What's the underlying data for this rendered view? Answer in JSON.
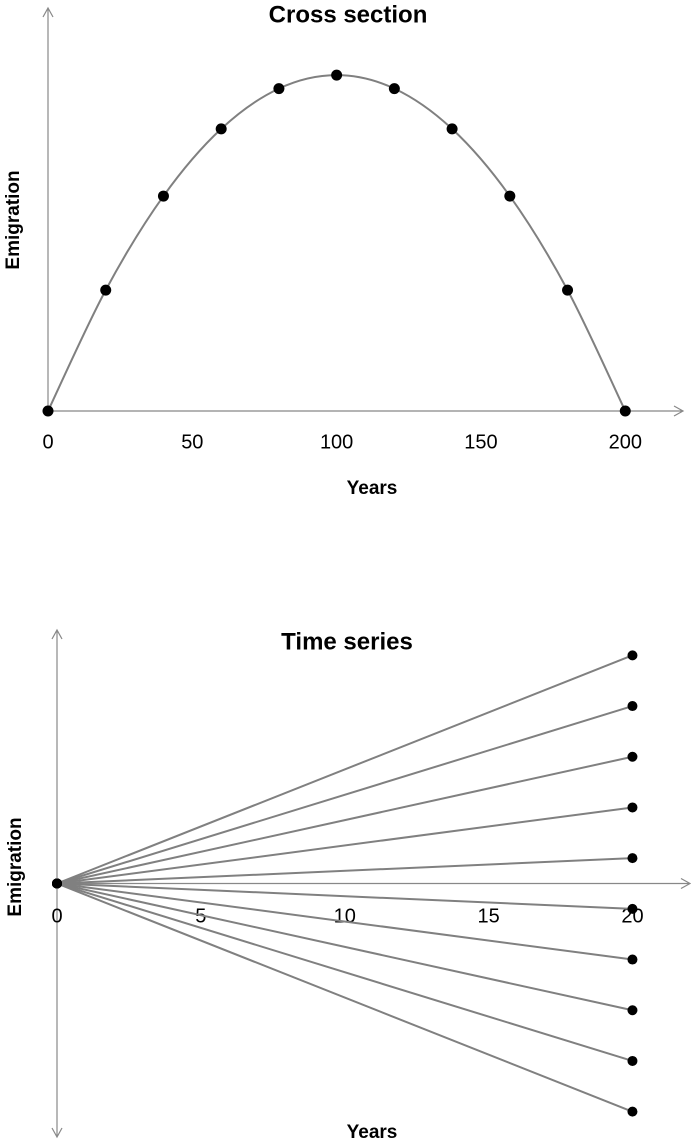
{
  "chart_data": [
    {
      "type": "line",
      "title": "Cross section",
      "xlabel": "Years",
      "ylabel": "Emigration",
      "x": [
        0,
        20,
        40,
        60,
        80,
        100,
        120,
        140,
        160,
        180,
        200
      ],
      "series": [
        {
          "color": "#808080",
          "values": [
            0,
            36,
            64,
            84,
            96,
            100,
            96,
            84,
            64,
            36,
            0
          ]
        }
      ],
      "smooth": true,
      "marker_color": "#000000",
      "xlim": [
        0,
        220
      ],
      "ylim": [
        0,
        120
      ],
      "xticks": [
        0,
        50,
        100,
        150,
        200
      ]
    },
    {
      "type": "line",
      "title": "Time series",
      "xlabel": "Years",
      "ylabel": "Emigration",
      "x": [
        0,
        20
      ],
      "series": [
        {
          "color": "#808080",
          "values": [
            0,
            4.5
          ]
        },
        {
          "color": "#808080",
          "values": [
            0,
            3.5
          ]
        },
        {
          "color": "#808080",
          "values": [
            0,
            2.5
          ]
        },
        {
          "color": "#808080",
          "values": [
            0,
            1.5
          ]
        },
        {
          "color": "#808080",
          "values": [
            0,
            0.5
          ]
        },
        {
          "color": "#808080",
          "values": [
            0,
            -0.5
          ]
        },
        {
          "color": "#808080",
          "values": [
            0,
            -1.5
          ]
        },
        {
          "color": "#808080",
          "values": [
            0,
            -2.5
          ]
        },
        {
          "color": "#808080",
          "values": [
            0,
            -3.5
          ]
        },
        {
          "color": "#808080",
          "values": [
            0,
            -4.5
          ]
        }
      ],
      "smooth": false,
      "marker_color": "#000000",
      "xlim": [
        0,
        22
      ],
      "ylim": [
        -5,
        5
      ],
      "xticks": [
        0,
        5,
        10,
        15,
        20
      ]
    }
  ]
}
